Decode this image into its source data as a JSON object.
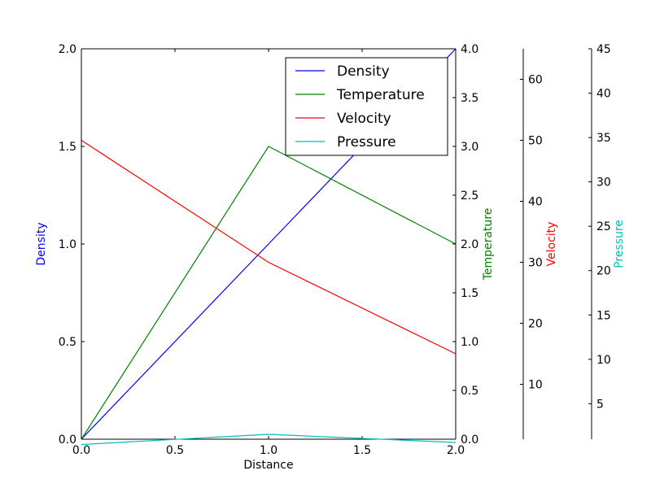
{
  "chart_data": {
    "type": "line",
    "x": [
      0,
      1,
      2
    ],
    "xlabel": "Distance",
    "xlim": [
      0,
      2
    ],
    "xticks": [
      "0.0",
      "0.5",
      "1.0",
      "1.5",
      "2.0"
    ],
    "grid": false,
    "legend_position": "top-right",
    "axes": [
      {
        "id": "density",
        "label": "Density",
        "color": "#0000ff",
        "ylim": [
          0,
          2
        ],
        "ticks": [
          0,
          0.5,
          1,
          1.5,
          2
        ],
        "tick_labels": [
          "0.0",
          "0.5",
          "1.0",
          "1.5",
          "2.0"
        ]
      },
      {
        "id": "temperature",
        "label": "Temperature",
        "color": "#008000",
        "ylim": [
          0,
          4
        ],
        "ticks": [
          0,
          0.5,
          1,
          1.5,
          2,
          2.5,
          3,
          3.5,
          4
        ],
        "tick_labels": [
          "0.0",
          "0.5",
          "1.0",
          "1.5",
          "2.0",
          "2.5",
          "3.0",
          "3.5",
          "4.0"
        ]
      },
      {
        "id": "velocity",
        "label": "Velocity",
        "color": "#ff0000",
        "ylim": [
          1,
          65
        ],
        "ticks": [
          10,
          20,
          30,
          40,
          50,
          60
        ],
        "tick_labels": [
          "10",
          "20",
          "30",
          "40",
          "50",
          "60"
        ]
      },
      {
        "id": "pressure",
        "label": "Pressure",
        "color": "#00bfbf",
        "ylim": [
          1,
          45
        ],
        "ticks": [
          5,
          10,
          15,
          20,
          25,
          30,
          35,
          40,
          45
        ],
        "tick_labels": [
          "5",
          "10",
          "15",
          "20",
          "25",
          "30",
          "35",
          "40",
          "45"
        ]
      }
    ],
    "series": [
      {
        "name": "Density",
        "axis": "density",
        "color": "#0000ff",
        "values": [
          0,
          1,
          2
        ]
      },
      {
        "name": "Temperature",
        "axis": "temperature",
        "color": "#008000",
        "values": [
          0,
          3,
          2
        ]
      },
      {
        "name": "Velocity",
        "axis": "velocity",
        "color": "#ff0000",
        "values": [
          50,
          30,
          15
        ]
      },
      {
        "name": "Pressure",
        "axis": "pressure",
        "color": "#00bfbf",
        "values": [
          0.4,
          1.55,
          0.63
        ]
      }
    ]
  }
}
